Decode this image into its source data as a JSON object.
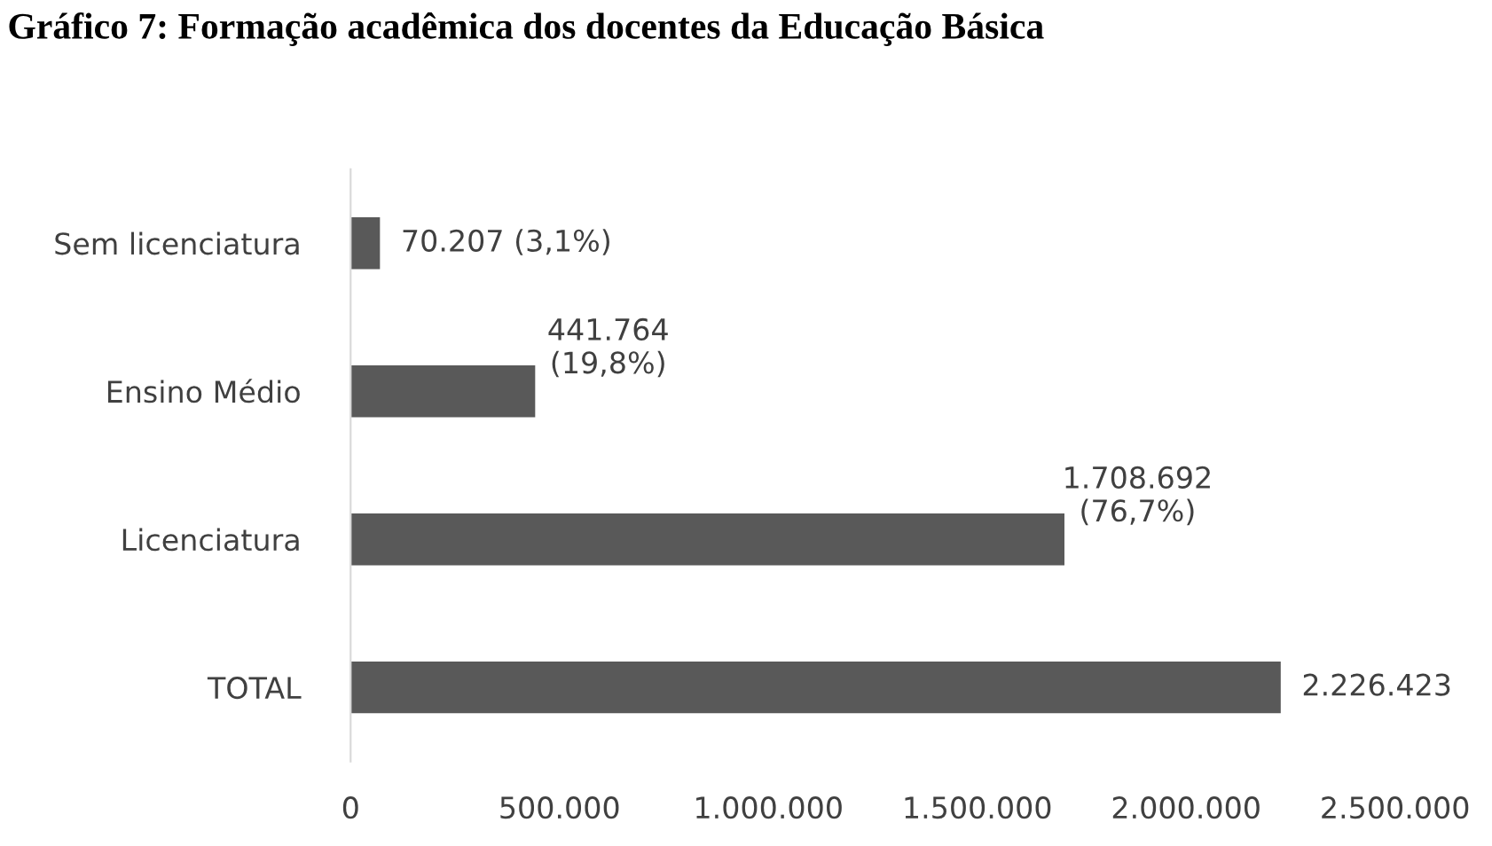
{
  "chart_data": {
    "type": "bar",
    "orientation": "horizontal",
    "title": "Gráfico 7: Formação acadêmica dos docentes da Educação Básica",
    "categories": [
      "Sem licenciatura",
      "Ensino Médio",
      "Licenciatura",
      "TOTAL"
    ],
    "values": [
      70207,
      441764,
      1708692,
      2226423
    ],
    "value_labels": [
      "70.207 (3,1%)",
      "441.764\n(19,8%)",
      "1.708.692\n(76,7%)",
      "2.226.423"
    ],
    "color": "#595959",
    "xlim": [
      0,
      2500000
    ],
    "xticks": [
      {
        "value": 0,
        "label": "0"
      },
      {
        "value": 500000,
        "label": "500.000"
      },
      {
        "value": 1000000,
        "label": "1.000.000"
      },
      {
        "value": 1500000,
        "label": "1.500.000"
      },
      {
        "value": 2000000,
        "label": "2.000.000"
      },
      {
        "value": 2500000,
        "label": "2.500.000"
      }
    ],
    "grid": false,
    "legend": false
  }
}
